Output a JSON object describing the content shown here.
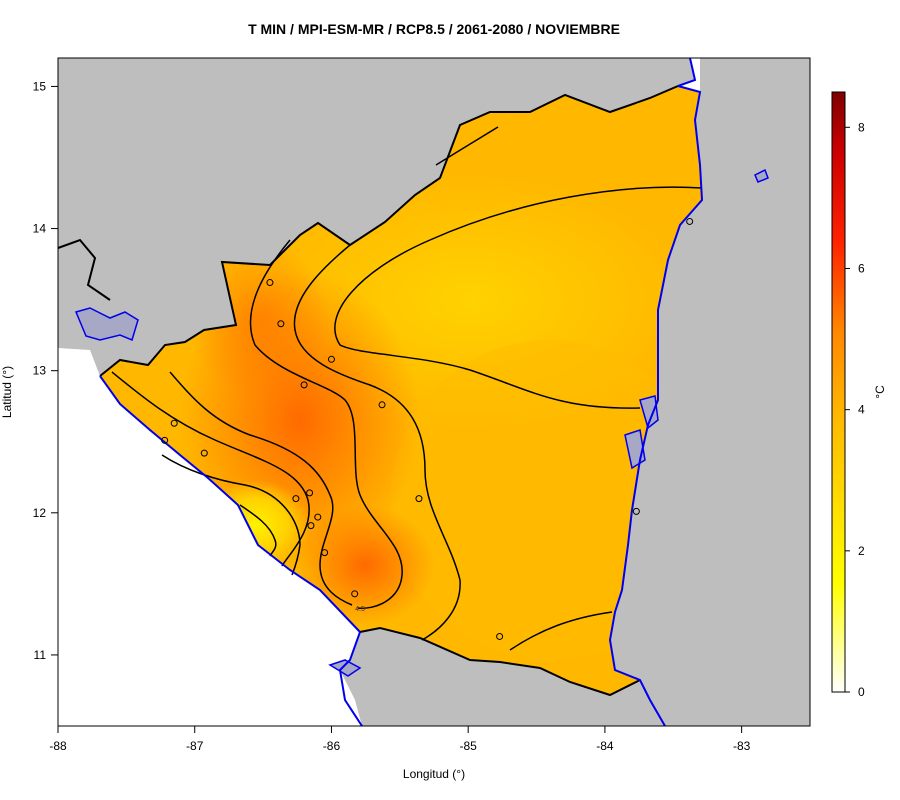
{
  "title": "T MIN / MPI-ESM-MR / RCP8.5 / 2061-2080 / NOVIEMBRE",
  "map": {
    "xlabel": "Longitud (°)",
    "ylabel": "Latitud (°)",
    "x_ticks": [
      "-88",
      "-87",
      "-86",
      "-85",
      "-84",
      "-83"
    ],
    "y_ticks": [
      "15",
      "14",
      "13",
      "12",
      "11"
    ],
    "lon_range": [
      -88,
      -82.5
    ],
    "lat_range": [
      10.5,
      15.2
    ],
    "contour_label": "4.5",
    "stations": [
      {
        "lon": -86.45,
        "lat": 13.62
      },
      {
        "lon": -86.37,
        "lat": 13.33
      },
      {
        "lon": -86.0,
        "lat": 13.08
      },
      {
        "lon": -86.2,
        "lat": 12.9
      },
      {
        "lon": -85.63,
        "lat": 12.76
      },
      {
        "lon": -87.15,
        "lat": 12.63
      },
      {
        "lon": -87.22,
        "lat": 12.51
      },
      {
        "lon": -86.93,
        "lat": 12.42
      },
      {
        "lon": -86.26,
        "lat": 12.1
      },
      {
        "lon": -86.16,
        "lat": 12.14
      },
      {
        "lon": -86.1,
        "lat": 11.97
      },
      {
        "lon": -86.15,
        "lat": 11.91
      },
      {
        "lon": -86.05,
        "lat": 11.72
      },
      {
        "lon": -85.83,
        "lat": 11.43
      },
      {
        "lon": -85.36,
        "lat": 12.1
      },
      {
        "lon": -83.77,
        "lat": 12.01
      },
      {
        "lon": -83.38,
        "lat": 14.05
      },
      {
        "lon": -84.77,
        "lat": 11.13
      }
    ]
  },
  "colorbar": {
    "unit": "°C",
    "ticks": [
      "8",
      "6",
      "4",
      "2",
      "0"
    ],
    "range": [
      0,
      8.5
    ],
    "colors": [
      "#ffffff",
      "#ffff00",
      "#ffcc00",
      "#ff9900",
      "#ff6600",
      "#ff0000",
      "#7f0000"
    ]
  },
  "colors": {
    "land_other": "#bebebe",
    "border": "#000000",
    "coast": "#0000ee",
    "lake": "#a7a7c6"
  }
}
